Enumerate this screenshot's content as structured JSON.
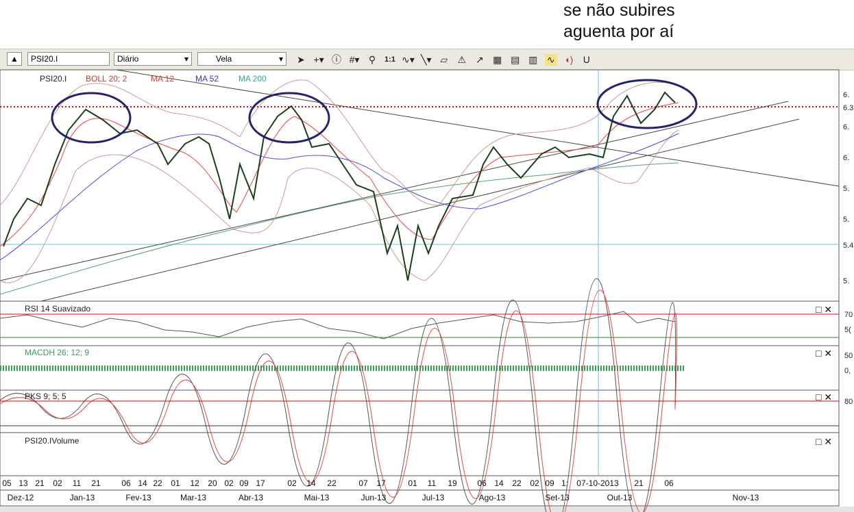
{
  "annotation": {
    "lines": [
      "se não subires",
      "aguenta por aí"
    ]
  },
  "toolbar": {
    "symbol": "PSI20.I",
    "period": "Diário",
    "chart_type": "Vela",
    "zoom": "1:1"
  },
  "legend": [
    "PSI20.I",
    "BOLL 20; 2",
    "MA 12",
    "MA 52",
    "MA 200"
  ],
  "price_axis": [
    "6.",
    "6.3",
    "6.",
    "6.",
    "5.",
    "5.",
    "5.4",
    "5."
  ],
  "panels": [
    {
      "title": "RSI 14 Suavizado",
      "axis_labels": [
        "70",
        "5("
      ]
    },
    {
      "title": "MACDH 26; 12; 9",
      "axis_labels": [
        "50",
        "0,"
      ]
    },
    {
      "title": "PKS 9; 5; 5",
      "axis_labels": [
        "80"
      ]
    },
    {
      "title": "PSI20.IVolume",
      "axis_labels": []
    }
  ],
  "x_axis": {
    "days": [
      "05",
      "13",
      "21",
      "02",
      "11",
      "21",
      "06",
      "14",
      "22",
      "01",
      "12",
      "20",
      "02",
      "09",
      "17",
      "02",
      "14",
      "22",
      "07",
      "17",
      "01",
      "11",
      "19",
      "06",
      "14",
      "22",
      "02",
      "09",
      "1:",
      "07-10-2013",
      "21",
      "06"
    ],
    "months": [
      "Dez-12",
      "Jan-13",
      "Fev-13",
      "Mar-13",
      "Abr-13",
      "Mai-13",
      "Jun-13",
      "Jul-13",
      "Ago-13",
      "Set-13",
      "Out-13",
      "Nov-13"
    ]
  }
}
